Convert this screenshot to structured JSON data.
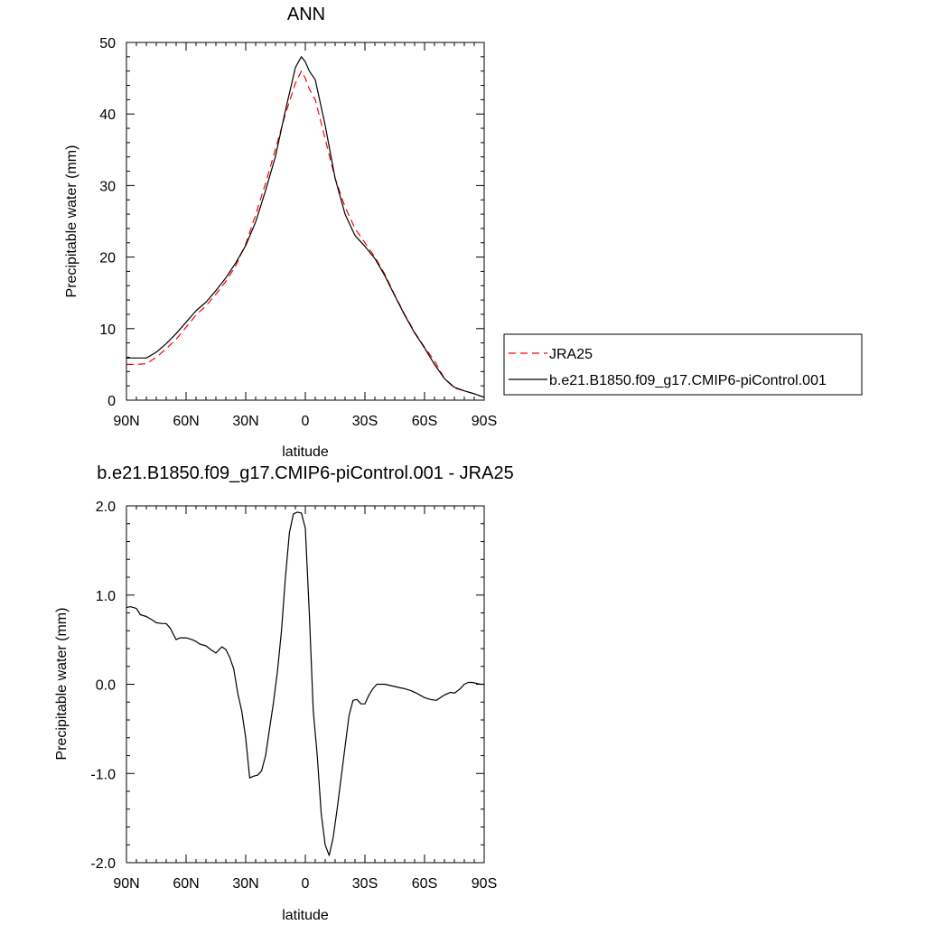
{
  "chart_data": [
    {
      "type": "line",
      "title": "ANN",
      "xlabel": "latitude",
      "ylabel": "Precipitable water (mm)",
      "xlim": [
        90,
        -90
      ],
      "ylim": [
        0,
        50
      ],
      "xticks": [
        90,
        60,
        30,
        0,
        -30,
        -60,
        -90
      ],
      "xtick_labels": [
        "90N",
        "60N",
        "30N",
        "0",
        "30S",
        "60S",
        "90S"
      ],
      "yticks": [
        0,
        10,
        20,
        30,
        40,
        50
      ],
      "ytick_labels": [
        "0",
        "10",
        "20",
        "30",
        "40",
        "50"
      ],
      "grid": false,
      "legend": "right",
      "series": [
        {
          "name": "JRA25",
          "color": "#ff0000",
          "dash": "dashed",
          "x": [
            90,
            85,
            80,
            75,
            70,
            65,
            60,
            55,
            50,
            45,
            40,
            35,
            30,
            25,
            20,
            15,
            10,
            5,
            2,
            0,
            -2,
            -5,
            -10,
            -15,
            -20,
            -25,
            -30,
            -35,
            -40,
            -45,
            -50,
            -55,
            -60,
            -65,
            -70,
            -75,
            -80,
            -85,
            -90
          ],
          "y": [
            5.0,
            5.0,
            5.1,
            6.0,
            7.2,
            8.5,
            10.2,
            11.9,
            13.2,
            14.8,
            16.6,
            18.8,
            21.8,
            25.9,
            30.3,
            35.1,
            40.0,
            44.3,
            46.0,
            45.0,
            43.5,
            42.0,
            36.5,
            31.0,
            27.0,
            24.0,
            22.0,
            20.0,
            17.6,
            14.7,
            12.0,
            9.5,
            7.4,
            5.5,
            3.0,
            1.7,
            1.3,
            0.9,
            0.4
          ]
        },
        {
          "name": "b.e21.B1850.f09_g17.CMIP6-piControl.001",
          "color": "#000000",
          "dash": "solid",
          "x": [
            90,
            85,
            80,
            75,
            70,
            65,
            60,
            55,
            50,
            45,
            40,
            35,
            30,
            25,
            20,
            15,
            10,
            5,
            2,
            0,
            -2,
            -5,
            -10,
            -15,
            -20,
            -25,
            -30,
            -35,
            -40,
            -45,
            -50,
            -55,
            -60,
            -65,
            -70,
            -75,
            -80,
            -85,
            -90
          ],
          "y": [
            5.9,
            5.9,
            5.9,
            6.7,
            7.9,
            9.3,
            10.9,
            12.5,
            13.7,
            15.3,
            17.1,
            19.2,
            21.6,
            24.9,
            29.3,
            34.1,
            40.5,
            46.5,
            48.0,
            47.3,
            46.0,
            44.8,
            38.4,
            31.0,
            26.0,
            23.0,
            21.5,
            19.8,
            17.4,
            14.6,
            11.9,
            9.4,
            7.3,
            5.0,
            3.0,
            1.8,
            1.3,
            0.9,
            0.4
          ]
        }
      ]
    },
    {
      "type": "line",
      "title": "b.e21.B1850.f09_g17.CMIP6-piControl.001 - JRA25",
      "xlabel": "latitude",
      "ylabel": "Precipitable water (mm)",
      "xlim": [
        90,
        -90
      ],
      "ylim": [
        -2.0,
        2.0
      ],
      "xticks": [
        90,
        60,
        30,
        0,
        -30,
        -60,
        -90
      ],
      "xtick_labels": [
        "90N",
        "60N",
        "30N",
        "0",
        "30S",
        "60S",
        "90S"
      ],
      "yticks": [
        -2.0,
        -1.0,
        0.0,
        1.0,
        2.0
      ],
      "ytick_labels": [
        "-2.0",
        "-1.0",
        "0.0",
        "1.0",
        "2.0"
      ],
      "grid": false,
      "series": [
        {
          "color": "#000000",
          "dash": "solid",
          "x": [
            90,
            88,
            85,
            83,
            80,
            77,
            75,
            72,
            70,
            68,
            65,
            63,
            60,
            57,
            55,
            53,
            50,
            47,
            45,
            42,
            40,
            38,
            36,
            34,
            32,
            30,
            28,
            26,
            24,
            22,
            20,
            18,
            16,
            14,
            12,
            10,
            8,
            6,
            4,
            2,
            0,
            -2,
            -4,
            -6,
            -8,
            -10,
            -12,
            -14,
            -16,
            -18,
            -20,
            -22,
            -24,
            -26,
            -28,
            -30,
            -32,
            -34,
            -36,
            -38,
            -40,
            -42,
            -44,
            -46,
            -48,
            -50,
            -53,
            -56,
            -60,
            -63,
            -66,
            -68,
            -70,
            -73,
            -75,
            -78,
            -80,
            -82,
            -84,
            -86,
            -88,
            -90
          ],
          "y": [
            0.86,
            0.87,
            0.85,
            0.78,
            0.76,
            0.72,
            0.69,
            0.68,
            0.68,
            0.63,
            0.5,
            0.52,
            0.52,
            0.5,
            0.48,
            0.45,
            0.43,
            0.38,
            0.35,
            0.42,
            0.39,
            0.3,
            0.17,
            -0.1,
            -0.3,
            -0.6,
            -1.05,
            -1.03,
            -1.02,
            -0.97,
            -0.8,
            -0.5,
            -0.2,
            0.15,
            0.6,
            1.2,
            1.7,
            1.91,
            1.93,
            1.92,
            1.75,
            0.8,
            -0.3,
            -0.8,
            -1.45,
            -1.8,
            -1.92,
            -1.72,
            -1.4,
            -1.05,
            -0.7,
            -0.35,
            -0.18,
            -0.17,
            -0.22,
            -0.22,
            -0.12,
            -0.05,
            0.0,
            0.0,
            0.0,
            -0.01,
            -0.02,
            -0.03,
            -0.04,
            -0.05,
            -0.07,
            -0.1,
            -0.15,
            -0.17,
            -0.18,
            -0.15,
            -0.12,
            -0.09,
            -0.1,
            -0.05,
            0.0,
            0.02,
            0.02,
            0.01,
            0.0,
            0.0
          ]
        }
      ]
    }
  ]
}
